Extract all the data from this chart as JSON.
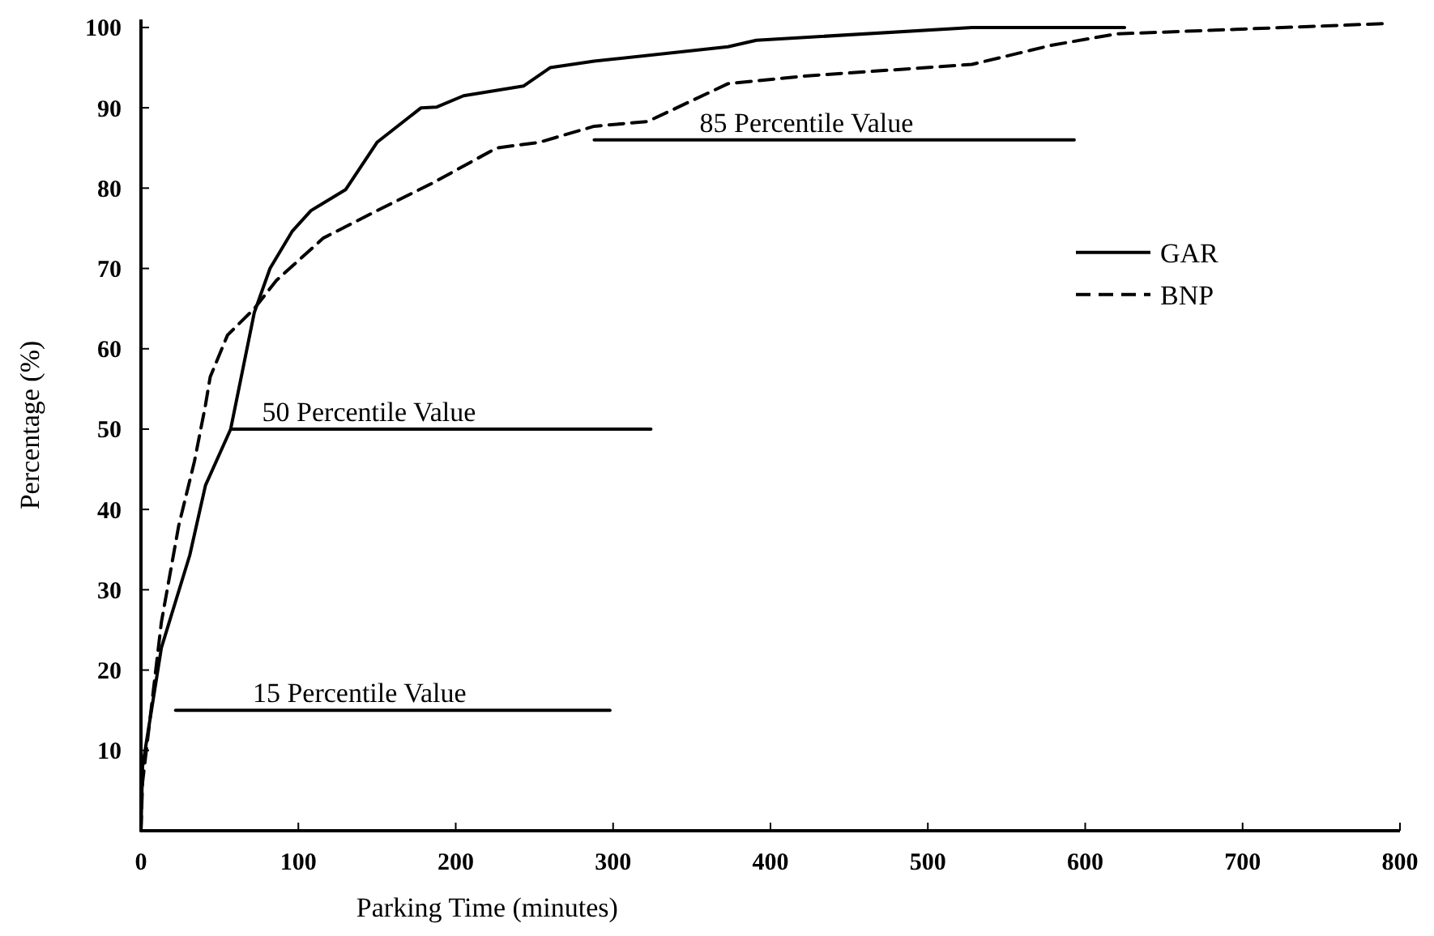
{
  "chart_data": {
    "type": "line",
    "xlabel": "Parking Time (minutes)",
    "ylabel": "Percentage (%)",
    "xlim": [
      0,
      800
    ],
    "xticks": [
      0,
      100,
      200,
      300,
      400,
      500,
      600,
      700,
      800
    ],
    "ylim": [
      0,
      101
    ],
    "yticks": [
      10,
      20,
      30,
      40,
      50,
      60,
      70,
      80,
      90,
      100
    ],
    "grid": false,
    "legend": "right",
    "marker": "none",
    "series": [
      {
        "name": "GAR",
        "color": "#000000",
        "line_style": "solid",
        "x": [
          0,
          1,
          13,
          31,
          41,
          57,
          72,
          82,
          96,
          108,
          130,
          150,
          178,
          188,
          205,
          243,
          260,
          288,
          373,
          391,
          528,
          625
        ],
        "values": [
          0,
          8,
          22.8,
          34.3,
          43,
          50,
          64.5,
          70,
          74.6,
          77.2,
          79.8,
          85.7,
          90,
          90.1,
          91.5,
          92.7,
          95,
          95.8,
          97.6,
          98.4,
          100,
          100
        ]
      },
      {
        "name": "BNP",
        "color": "#000000",
        "line_style": "dashed",
        "x": [
          0,
          1,
          13,
          24,
          34,
          41,
          44,
          55,
          72,
          86,
          116,
          150,
          185,
          226,
          253,
          288,
          322,
          373,
          425,
          528,
          579,
          620,
          700,
          793
        ],
        "values": [
          0,
          6,
          26,
          38,
          46,
          53,
          56.5,
          61.7,
          65,
          68.5,
          73.8,
          77.2,
          80.6,
          85,
          85.7,
          87.7,
          88.3,
          93,
          94,
          95.4,
          97.8,
          99.2,
          99.8,
          100.5
        ]
      },
      {
        "type": "line",
        "color": "#000000",
        "line_style": "solid",
        "x": [
          22,
          298
        ],
        "values": [
          15,
          15
        ]
      },
      {
        "type": "line",
        "color": "#000000",
        "line_style": "solid",
        "x": [
          57,
          324
        ],
        "values": [
          50,
          50
        ]
      },
      {
        "type": "line",
        "color": "#000000",
        "line_style": "solid",
        "x": [
          288,
          593
        ],
        "values": [
          86,
          86
        ]
      }
    ],
    "annotations": [
      {
        "text": "15 Percentile Value",
        "x": 71,
        "y": 15
      },
      {
        "text": "50 Percentile Value",
        "x": 77,
        "y": 50
      },
      {
        "text": "85 Percentile Value",
        "x": 355,
        "y": 86
      }
    ]
  }
}
